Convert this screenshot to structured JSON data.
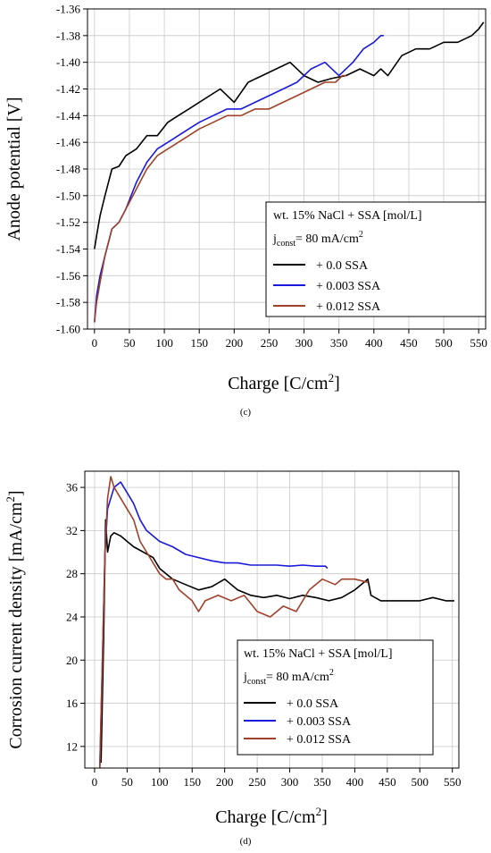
{
  "chart_data": [
    {
      "type": "line",
      "panel": "(c)",
      "xlabel": "Charge [C/cm",
      "xlabel_sup": "2",
      "xlabel_end": "]",
      "ylabel": "Anode potential [V]",
      "xlim": [
        -10,
        560
      ],
      "ylim": [
        -1.6,
        -1.36
      ],
      "xticks": [
        0,
        50,
        100,
        150,
        200,
        250,
        300,
        350,
        400,
        450,
        500,
        550
      ],
      "yticks": [
        -1.6,
        -1.58,
        -1.56,
        -1.54,
        -1.52,
        -1.5,
        -1.48,
        -1.46,
        -1.44,
        -1.42,
        -1.4,
        -1.38,
        -1.36
      ],
      "yticklabels": [
        "-1.60",
        "-1.58",
        "-1.56",
        "-1.54",
        "-1.52",
        "-1.50",
        "-1.48",
        "-1.46",
        "-1.44",
        "-1.42",
        "-1.40",
        "-1.38",
        "-1.36"
      ],
      "grid": true,
      "legend": {
        "title": "wt. 15% NaCl + SSA [mol/L]",
        "j_label": "j",
        "j_sub": "const",
        "j_value": "= 80 mA/cm",
        "j_sup": "2",
        "position": "lower-right"
      },
      "series": [
        {
          "name": "+ 0.0 SSA",
          "color": "#000000",
          "x": [
            0,
            3,
            8,
            15,
            25,
            35,
            45,
            60,
            75,
            90,
            105,
            120,
            135,
            150,
            165,
            180,
            200,
            220,
            240,
            260,
            280,
            300,
            320,
            340,
            360,
            380,
            400,
            410,
            420,
            440,
            460,
            480,
            500,
            520,
            540,
            550,
            557
          ],
          "y": [
            -1.54,
            -1.53,
            -1.515,
            -1.5,
            -1.48,
            -1.478,
            -1.47,
            -1.465,
            -1.455,
            -1.455,
            -1.445,
            -1.44,
            -1.435,
            -1.43,
            -1.425,
            -1.42,
            -1.43,
            -1.415,
            -1.41,
            -1.405,
            -1.4,
            -1.41,
            -1.415,
            -1.412,
            -1.41,
            -1.405,
            -1.41,
            -1.405,
            -1.41,
            -1.395,
            -1.39,
            -1.39,
            -1.385,
            -1.385,
            -1.38,
            -1.375,
            -1.37
          ]
        },
        {
          "name": "+ 0.003 SSA",
          "color": "#1a1adc",
          "x": [
            0,
            3,
            8,
            15,
            25,
            35,
            45,
            60,
            75,
            90,
            105,
            120,
            135,
            150,
            170,
            190,
            210,
            230,
            250,
            270,
            290,
            310,
            330,
            350,
            370,
            385,
            400,
            410,
            414
          ],
          "y": [
            -1.595,
            -1.575,
            -1.56,
            -1.545,
            -1.525,
            -1.52,
            -1.51,
            -1.49,
            -1.475,
            -1.465,
            -1.46,
            -1.455,
            -1.45,
            -1.445,
            -1.44,
            -1.435,
            -1.435,
            -1.43,
            -1.425,
            -1.42,
            -1.415,
            -1.405,
            -1.4,
            -1.41,
            -1.4,
            -1.39,
            -1.385,
            -1.38,
            -1.38
          ]
        },
        {
          "name": "+ 0.012 SSA",
          "color": "#a0422a",
          "x": [
            0,
            3,
            8,
            15,
            25,
            35,
            45,
            60,
            75,
            90,
            105,
            120,
            135,
            150,
            170,
            190,
            210,
            230,
            250,
            270,
            290,
            310,
            330,
            345,
            355,
            360
          ],
          "y": [
            -1.595,
            -1.58,
            -1.565,
            -1.545,
            -1.525,
            -1.52,
            -1.51,
            -1.495,
            -1.48,
            -1.47,
            -1.465,
            -1.46,
            -1.455,
            -1.45,
            -1.445,
            -1.44,
            -1.44,
            -1.435,
            -1.435,
            -1.43,
            -1.425,
            -1.42,
            -1.415,
            -1.415,
            -1.41,
            -1.41
          ]
        }
      ]
    },
    {
      "type": "line",
      "panel": "(d)",
      "xlabel": "Charge [C/cm",
      "xlabel_sup": "2",
      "xlabel_end": "]",
      "ylabel": "Corrosion current density [mA/cm",
      "ylabel_sup": "2",
      "ylabel_end": "]",
      "xlim": [
        -15,
        560
      ],
      "ylim": [
        10,
        37.5
      ],
      "xticks": [
        0,
        50,
        100,
        150,
        200,
        250,
        300,
        350,
        400,
        450,
        500,
        550
      ],
      "yticks": [
        12,
        16,
        20,
        24,
        28,
        32,
        36
      ],
      "yticklabels": [
        "12",
        "16",
        "20",
        "24",
        "28",
        "32",
        "36"
      ],
      "grid": true,
      "legend": {
        "title": "wt. 15% NaCl + SSA [mol/L]",
        "j_label": "j",
        "j_sub": "const",
        "j_value": "= 80 mA/cm",
        "j_sup": "2",
        "position": "lower-right"
      },
      "series": [
        {
          "name": "+ 0.0 SSA",
          "color": "#000000",
          "x": [
            10,
            14,
            17,
            20,
            25,
            30,
            40,
            50,
            60,
            75,
            90,
            100,
            120,
            140,
            160,
            180,
            200,
            220,
            240,
            260,
            280,
            300,
            320,
            340,
            360,
            380,
            400,
            420,
            425,
            440,
            460,
            480,
            500,
            520,
            540,
            553
          ],
          "y": [
            10.5,
            22,
            33,
            30,
            31.5,
            31.8,
            31.5,
            31,
            30.5,
            30,
            29.5,
            28.5,
            27.5,
            27,
            26.5,
            26.8,
            27.5,
            26.5,
            26,
            25.8,
            26,
            25.7,
            26,
            25.8,
            25.5,
            25.8,
            26.5,
            27.5,
            26,
            25.5,
            25.5,
            25.5,
            25.5,
            25.8,
            25.5,
            25.5
          ]
        },
        {
          "name": "+ 0.003 SSA",
          "color": "#1a1adc",
          "x": [
            8,
            12,
            16,
            20,
            25,
            30,
            40,
            50,
            60,
            70,
            80,
            100,
            120,
            140,
            160,
            180,
            200,
            220,
            240,
            260,
            280,
            300,
            320,
            340,
            355,
            358
          ],
          "y": [
            10,
            20,
            30,
            34,
            35,
            36,
            36.5,
            35.5,
            34.5,
            33,
            32,
            31,
            30.5,
            29.8,
            29.5,
            29.2,
            29,
            29,
            28.8,
            28.8,
            28.8,
            28.7,
            28.8,
            28.7,
            28.7,
            28.5
          ]
        },
        {
          "name": "+ 0.012 SSA",
          "color": "#a0422a",
          "x": [
            8,
            12,
            16,
            20,
            25,
            30,
            40,
            50,
            60,
            70,
            80,
            90,
            100,
            110,
            120,
            130,
            140,
            150,
            160,
            170,
            190,
            210,
            230,
            250,
            270,
            290,
            310,
            330,
            350,
            370,
            380,
            400,
            420
          ],
          "y": [
            10,
            20,
            30,
            35,
            37,
            36,
            35,
            34,
            33,
            31,
            30,
            29,
            28,
            27.5,
            27.5,
            26.5,
            26,
            25.5,
            24.5,
            25.5,
            26,
            25.5,
            26,
            24.5,
            24,
            25,
            24.5,
            26.5,
            27.5,
            27,
            27.5,
            27.5,
            27.2
          ]
        }
      ]
    }
  ]
}
